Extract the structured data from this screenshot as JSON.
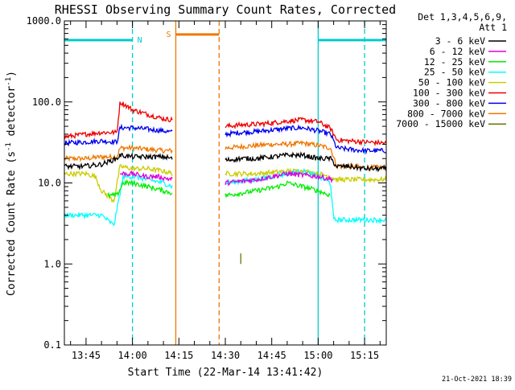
{
  "chart_data": {
    "type": "line",
    "title": "RHESSI Observing Summary Count Rates, Corrected",
    "xlabel": "Start Time (22-Mar-14 13:41:42)",
    "ylabel": "Corrected Count Rate (s⁻¹ detector⁻¹)",
    "ylabel_main": "Corrected Count Rate (s",
    "ylabel_sup1": "-1",
    "ylabel_mid": " detector",
    "ylabel_sup2": "-1",
    "ylabel_end": ")",
    "yscale": "log",
    "ylim": [
      0.1,
      1000
    ],
    "xlim": [
      "13:38",
      "15:22"
    ],
    "x_ticks": [
      "13:45",
      "14:00",
      "14:15",
      "14:30",
      "14:45",
      "15:00",
      "15:15"
    ],
    "y_ticks": [
      "0.1",
      "1.0",
      "10.0",
      "100.0",
      "1000.0"
    ],
    "legend_header": [
      "Det 1,3,4,5,6,9,",
      "Att 1"
    ],
    "legend_placement": "right",
    "footer_date": "21-Oct-2021 18:39",
    "flags": [
      {
        "label": "N",
        "color": "#00cccc",
        "start": "13:38",
        "end": "14:00",
        "level": 580
      },
      {
        "label": "S",
        "color": "#ee7700",
        "start": "14:14",
        "end": "14:28",
        "level": 680
      },
      {
        "label": "",
        "color": "#00cccc",
        "start": "15:00",
        "end": "15:22",
        "level": 580
      }
    ],
    "vertical_lines": [
      {
        "time": "14:00",
        "color": "#00cccc",
        "style": "dashed"
      },
      {
        "time": "14:14",
        "color": "#ee7700",
        "style": "solid"
      },
      {
        "time": "14:28",
        "color": "#ee7700",
        "style": "dashed"
      },
      {
        "time": "15:00",
        "color": "#00cccc",
        "style": "solid"
      },
      {
        "time": "15:15",
        "color": "#00cccc",
        "style": "dashed"
      }
    ],
    "gap": [
      "14:14",
      "14:30"
    ],
    "series": [
      {
        "name": "3 - 6 keV",
        "color": "#000000",
        "segments": [
          {
            "t": [
              "13:38",
              "13:44",
              "13:50",
              "13:55",
              "13:56",
              "14:00",
              "14:05",
              "14:10",
              "14:13"
            ],
            "v": [
              16,
              16,
              17,
              20,
              22,
              21,
              21,
              21,
              20
            ]
          },
          {
            "t": [
              "14:30",
              "14:35",
              "14:40",
              "14:45",
              "14:50",
              "14:55",
              "15:00",
              "15:04",
              "15:06",
              "15:10",
              "15:15",
              "15:22"
            ],
            "v": [
              19,
              20,
              20,
              21,
              22,
              22,
              20,
              20,
              16,
              16,
              15,
              15
            ]
          }
        ]
      },
      {
        "name": "6 - 12 keV",
        "color": "#dd00dd",
        "segments": [
          {
            "t": [
              "13:56",
              "14:00",
              "14:04",
              "14:08",
              "14:13"
            ],
            "v": [
              13,
              13,
              12,
              12,
              11
            ]
          },
          {
            "t": [
              "14:30",
              "14:40",
              "14:50",
              "15:00",
              "15:05"
            ],
            "v": [
              10,
              11,
              13,
              12,
              11
            ]
          }
        ]
      },
      {
        "name": "12 - 25 keV",
        "color": "#00ee00",
        "segments": [
          {
            "t": [
              "13:52",
              "13:55",
              "13:57",
              "14:00",
              "14:05",
              "14:10",
              "14:13"
            ],
            "v": [
              7,
              7,
              10,
              10,
              9,
              8,
              7.5
            ]
          },
          {
            "t": [
              "14:30",
              "14:40",
              "14:47",
              "14:50",
              "14:55",
              "15:00",
              "15:04"
            ],
            "v": [
              7,
              8,
              9,
              10,
              9,
              8,
              7
            ]
          }
        ]
      },
      {
        "name": "25 - 50 keV",
        "color": "#00ffff",
        "segments": [
          {
            "t": [
              "13:38",
              "13:45",
              "13:50",
              "13:54",
              "13:57",
              "14:00",
              "14:05",
              "14:10",
              "14:13"
            ],
            "v": [
              4,
              4,
              4,
              3,
              12,
              12,
              11,
              10,
              9
            ]
          },
          {
            "t": [
              "14:30",
              "14:40",
              "14:50",
              "14:55",
              "15:00",
              "15:04",
              "15:05",
              "15:10",
              "15:15",
              "15:22"
            ],
            "v": [
              10,
              11,
              13,
              14,
              12,
              10,
              3.5,
              3.5,
              3.5,
              3.5
            ]
          }
        ]
      },
      {
        "name": "50 - 100 keV",
        "color": "#cccc00",
        "segments": [
          {
            "t": [
              "13:38",
              "13:45",
              "13:48",
              "13:50",
              "13:54",
              "13:56",
              "14:00",
              "14:05",
              "14:10",
              "14:13"
            ],
            "v": [
              13,
              13,
              12,
              8,
              6,
              16,
              15,
              15,
              14,
              13
            ]
          },
          {
            "t": [
              "14:30",
              "14:40",
              "14:50",
              "14:55",
              "15:00",
              "15:04",
              "15:06",
              "15:10",
              "15:15",
              "15:22"
            ],
            "v": [
              13,
              13,
              14,
              14,
              13,
              12,
              11,
              11,
              11,
              11
            ]
          }
        ]
      },
      {
        "name": "100 - 300 keV",
        "color": "#ee0000",
        "segments": [
          {
            "t": [
              "13:38",
              "13:45",
              "13:50",
              "13:55",
              "13:56",
              "13:58",
              "14:00",
              "14:05",
              "14:10",
              "14:13"
            ],
            "v": [
              37,
              40,
              42,
              42,
              100,
              90,
              80,
              70,
              62,
              60
            ]
          },
          {
            "t": [
              "14:30",
              "14:35",
              "14:40",
              "14:45",
              "14:50",
              "14:55",
              "15:00",
              "15:04",
              "15:06",
              "15:10",
              "15:15",
              "15:22"
            ],
            "v": [
              50,
              52,
              53,
              55,
              58,
              60,
              57,
              47,
              34,
              33,
              32,
              31
            ]
          }
        ]
      },
      {
        "name": "300 - 800 keV",
        "color": "#0000ee",
        "segments": [
          {
            "t": [
              "13:38",
              "13:45",
              "13:50",
              "13:55",
              "13:56",
              "14:00",
              "14:05",
              "14:10",
              "14:13"
            ],
            "v": [
              31,
              32,
              33,
              32,
              48,
              48,
              46,
              44,
              42
            ]
          },
          {
            "t": [
              "14:30",
              "14:35",
              "14:40",
              "14:45",
              "14:50",
              "14:55",
              "15:00",
              "15:04",
              "15:06",
              "15:10",
              "15:15",
              "15:22"
            ],
            "v": [
              40,
              42,
              43,
              45,
              47,
              48,
              44,
              40,
              27,
              26,
              25,
              25
            ]
          }
        ]
      },
      {
        "name": "800 - 7000 keV",
        "color": "#ee7700",
        "segments": [
          {
            "t": [
              "13:38",
              "13:45",
              "13:50",
              "13:55",
              "13:56",
              "14:00",
              "14:05",
              "14:10",
              "14:13"
            ],
            "v": [
              20,
              20,
              21,
              21,
              27,
              27,
              26,
              25,
              25
            ]
          },
          {
            "t": [
              "14:30",
              "14:35",
              "14:40",
              "14:45",
              "14:50",
              "14:55",
              "15:00",
              "15:04",
              "15:06",
              "15:10",
              "15:15",
              "15:22"
            ],
            "v": [
              27,
              28,
              29,
              30,
              30,
              31,
              29,
              27,
              16,
              16,
              15.5,
              15.5
            ]
          }
        ]
      },
      {
        "name": "7000 - 15000 keV",
        "color": "#667700",
        "segments": [
          {
            "t": [
              "14:35",
              "14:35"
            ],
            "v": [
              1.0,
              1.35
            ]
          }
        ]
      }
    ]
  }
}
